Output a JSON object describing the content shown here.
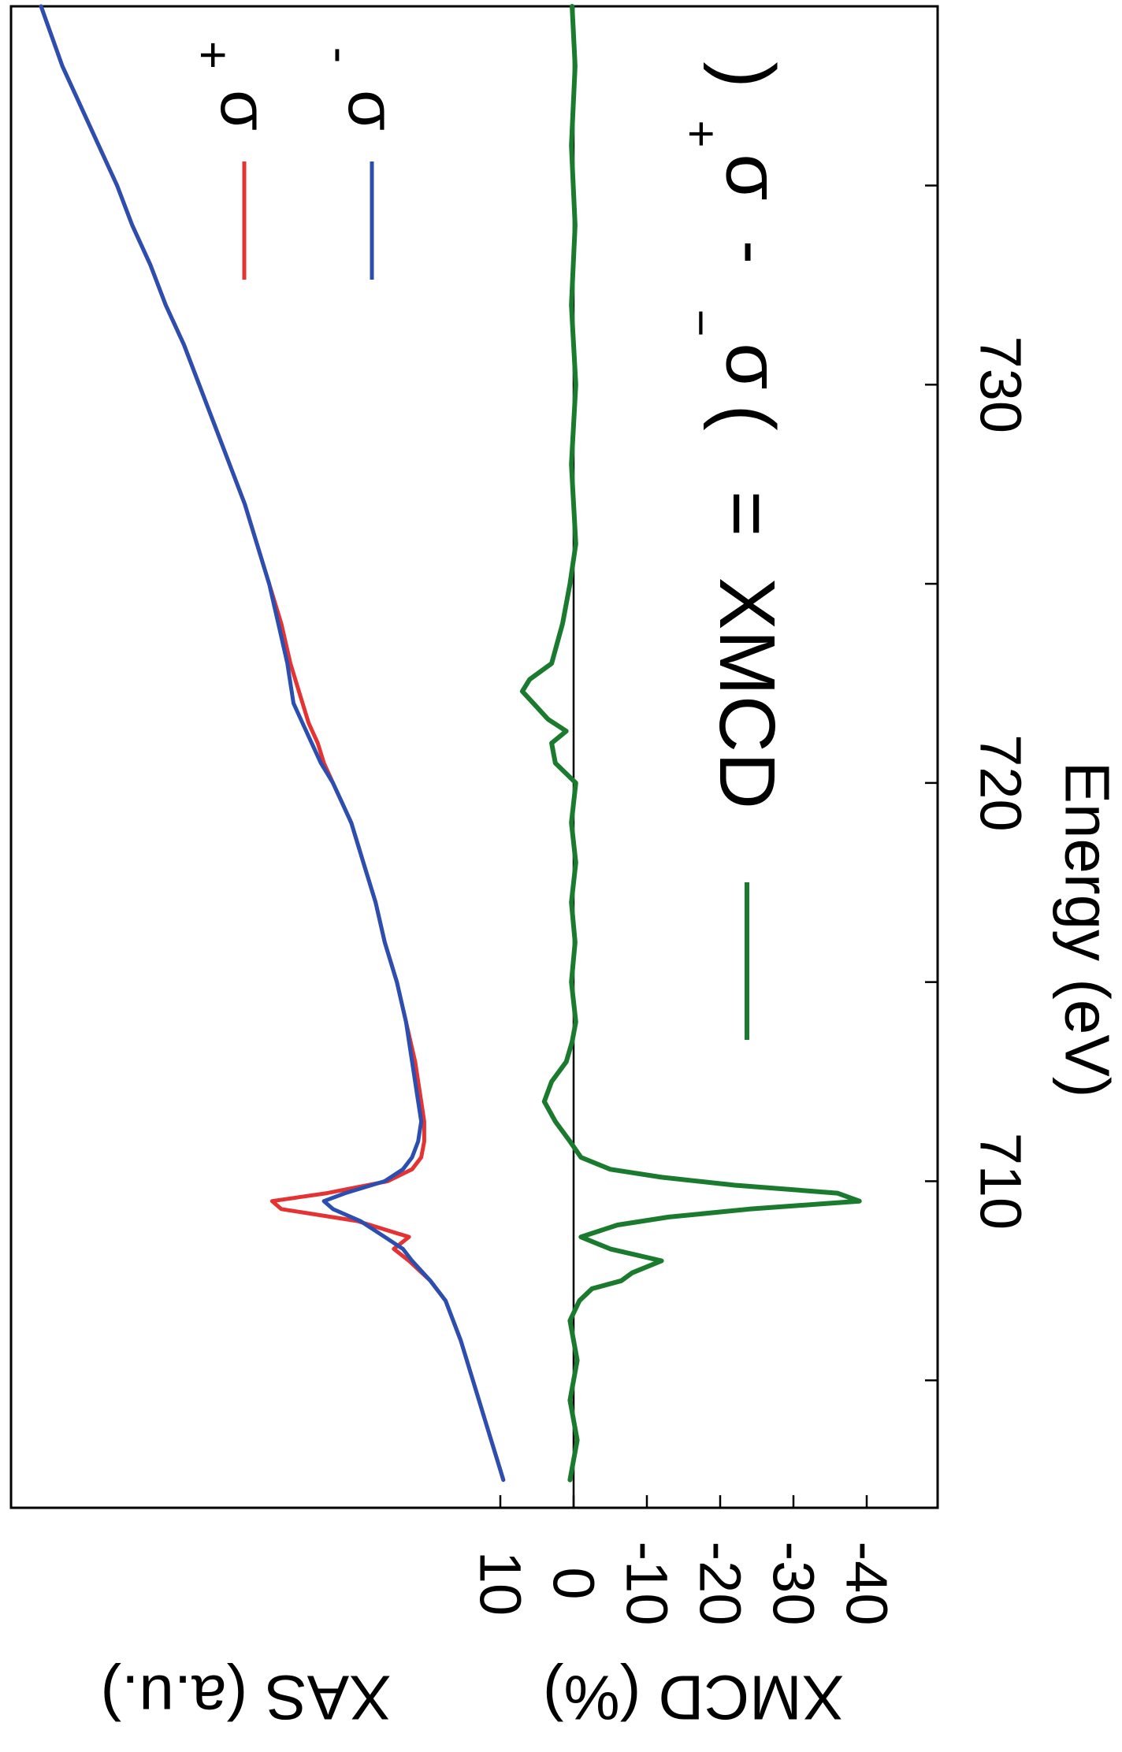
{
  "chart_data": {
    "type": "line",
    "orientation": "rotated-90-clockwise",
    "xlabel": "Energy (eV)",
    "xlim": [
      701.8,
      739.5
    ],
    "x_ticks": [
      705,
      710,
      715,
      720,
      725,
      730,
      735
    ],
    "x_tick_labels": [
      "710",
      "720",
      "730"
    ],
    "y_left_label_xas": "XAS (a.u.)",
    "y_left_label_xmcd": "XMCD (%)",
    "xmcd_ylim": [
      -48,
      20
    ],
    "xmcd_ticks": [
      10,
      0,
      -10,
      -20,
      -30,
      -40
    ],
    "xmcd_tick_labels": [
      "10",
      "0",
      "-10",
      "-20",
      "-30",
      "-40"
    ],
    "grid": false,
    "legend_position": "top-right",
    "zero_line": 0,
    "series": [
      {
        "name": "σ+",
        "color": "#e53232",
        "x": [
          702.5,
          703,
          704,
          705,
          706,
          707,
          707.5,
          708,
          708.3,
          708.6,
          709,
          709.3,
          709.5,
          709.7,
          710,
          710.3,
          710.6,
          711,
          711.5,
          712,
          713,
          714,
          715,
          716,
          717,
          718,
          719,
          719.5,
          720,
          720.5,
          721,
          721.5,
          722,
          722.5,
          723,
          724,
          725,
          726,
          727,
          728,
          729,
          730,
          731,
          732,
          733,
          734,
          735,
          736,
          737,
          738,
          739.5
        ],
        "y": [
          2.0,
          2.2,
          2.6,
          3.0,
          3.4,
          3.9,
          4.4,
          5.1,
          5.6,
          5.1,
          6.8,
          9.3,
          9.6,
          7.8,
          5.8,
          5.0,
          4.7,
          4.6,
          4.6,
          4.7,
          4.9,
          5.2,
          5.5,
          5.9,
          6.2,
          6.6,
          7.0,
          7.3,
          7.6,
          7.9,
          8.1,
          8.4,
          8.6,
          8.8,
          9.0,
          9.3,
          9.7,
          10.1,
          10.5,
          11.0,
          11.5,
          12.0,
          12.5,
          13.1,
          13.6,
          14.2,
          14.7,
          15.3,
          15.9,
          16.5,
          17.2
        ]
      },
      {
        "name": "σ-",
        "color": "#2b4fb0",
        "x": [
          702.5,
          703,
          704,
          705,
          706,
          707,
          707.5,
          708,
          708.3,
          708.6,
          709,
          709.3,
          709.5,
          709.7,
          710,
          710.3,
          710.6,
          711,
          711.5,
          712,
          713,
          714,
          715,
          716,
          717,
          718,
          719,
          719.5,
          720,
          720.5,
          721,
          721.5,
          722,
          722.5,
          723,
          724,
          725,
          726,
          727,
          728,
          729,
          730,
          731,
          732,
          733,
          734,
          735,
          736,
          737,
          738,
          739.5
        ],
        "y": [
          2.0,
          2.2,
          2.6,
          3.0,
          3.4,
          3.9,
          4.4,
          5.0,
          5.3,
          5.9,
          6.7,
          7.6,
          7.9,
          7.2,
          5.9,
          5.3,
          5.0,
          4.8,
          4.7,
          4.8,
          5.0,
          5.2,
          5.5,
          5.9,
          6.2,
          6.6,
          7.0,
          7.3,
          7.6,
          8.0,
          8.3,
          8.6,
          8.9,
          9.0,
          9.1,
          9.4,
          9.7,
          10.1,
          10.5,
          11.0,
          11.5,
          12.0,
          12.5,
          13.1,
          13.6,
          14.2,
          14.7,
          15.3,
          15.9,
          16.5,
          17.2
        ]
      },
      {
        "name": "XMCD = (σ− − σ+)",
        "color": "#1a7a2e",
        "x": [
          702.5,
          703.5,
          704.5,
          705.5,
          706.5,
          707,
          707.3,
          707.5,
          707.7,
          708,
          708.3,
          708.6,
          708.9,
          709.1,
          709.3,
          709.5,
          709.7,
          709.9,
          710.1,
          710.3,
          710.6,
          711,
          711.5,
          712,
          712.5,
          713,
          713.5,
          714,
          715,
          716,
          717,
          718,
          719,
          720,
          720.5,
          721,
          721.3,
          721.6,
          722,
          722.3,
          722.6,
          723,
          724,
          725,
          726,
          728,
          730,
          732,
          734,
          736,
          738,
          739.5
        ],
        "y": [
          0.5,
          -0.5,
          0.5,
          -0.5,
          0.5,
          -0.8,
          -2.5,
          -6.5,
          -8.0,
          -12.0,
          -5.0,
          -1.0,
          -6.0,
          -13.0,
          -24.0,
          -39.0,
          -36.0,
          -22.0,
          -12.0,
          -5.0,
          -1.0,
          0.5,
          2.5,
          4.0,
          3.0,
          1.0,
          0.2,
          -0.3,
          0.3,
          -0.2,
          0.3,
          -0.3,
          0.3,
          -0.3,
          2.5,
          3.0,
          1.0,
          3.5,
          5.5,
          7.0,
          6.0,
          3.0,
          1.5,
          0.5,
          -0.3,
          0.3,
          -0.3,
          0.3,
          -0.2,
          0.3,
          -0.2,
          0.2
        ]
      }
    ],
    "legend_entries": [
      {
        "label": "σ",
        "sup": "+",
        "color": "#e53232"
      },
      {
        "label": "σ",
        "sup": "-",
        "color": "#2b4fb0"
      }
    ],
    "annotation": {
      "xmcd": "XMCD",
      "eq": "=",
      "open": "(",
      "sigma1": "σ",
      "sup1": "−",
      "minus": "-",
      "sigma2": "σ",
      "sup2": "+",
      "close": ")",
      "color": "#1a7a2e"
    }
  }
}
